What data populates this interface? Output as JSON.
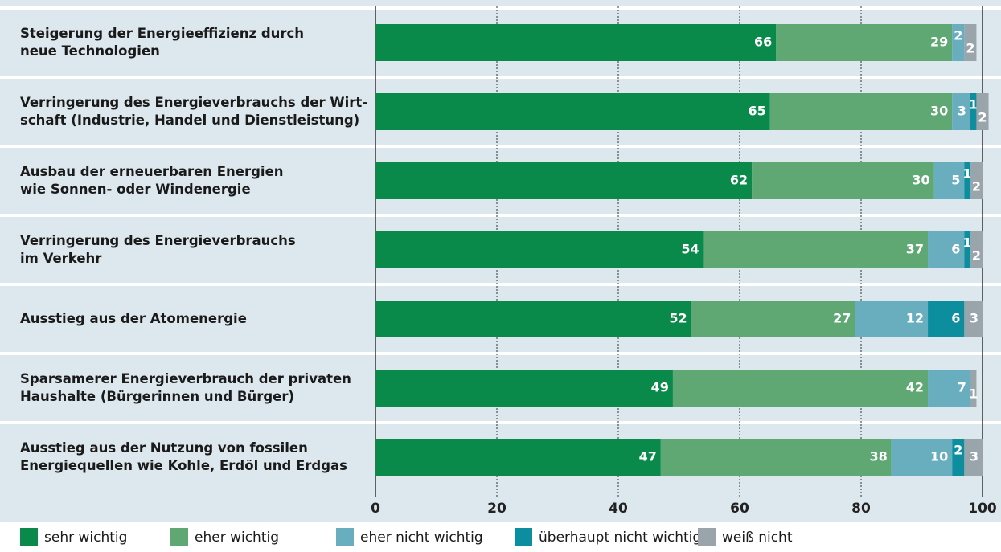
{
  "chart_data": {
    "type": "stacked-bar-horizontal",
    "categories": [
      "Steigerung der Energieeffizienz durch\nneue Technologien",
      "Verringerung des Energieverbrauchs der Wirt-\nschaft (Industrie, Handel und Dienstleistung)",
      "Ausbau der erneuerbaren Energien\nwie Sonnen- oder Windenergie",
      "Verringerung des Energieverbrauchs\nim Verkehr",
      "Ausstieg aus der Atomenergie",
      "Sparsamerer Energieverbrauch der privaten\nHaushalte (Bürgerinnen und Bürger)",
      "Ausstieg aus der Nutzung von fossilen\nEnergiequellen wie Kohle, Erdöl und Erdgas"
    ],
    "series": [
      {
        "name": "sehr wichtig",
        "color": "#0a8a4a",
        "values": [
          66,
          65,
          62,
          54,
          52,
          49,
          47
        ]
      },
      {
        "name": "eher wichtig",
        "color": "#5fa874",
        "values": [
          29,
          30,
          30,
          37,
          27,
          42,
          38
        ]
      },
      {
        "name": "eher nicht wichtig",
        "color": "#69aebf",
        "values": [
          2,
          3,
          5,
          6,
          12,
          7,
          10
        ]
      },
      {
        "name": "überhaupt nicht wichtig",
        "color": "#0d8e9e",
        "values": [
          null,
          1,
          1,
          1,
          6,
          null,
          2
        ]
      },
      {
        "name": "weiß nicht",
        "color": "#9aa4ab",
        "values": [
          2,
          2,
          2,
          2,
          3,
          1,
          3
        ]
      }
    ],
    "xlim": [
      0,
      100
    ],
    "xticks": [
      0,
      20,
      40,
      60,
      80,
      100
    ],
    "grid": true,
    "legend": "bottom"
  }
}
